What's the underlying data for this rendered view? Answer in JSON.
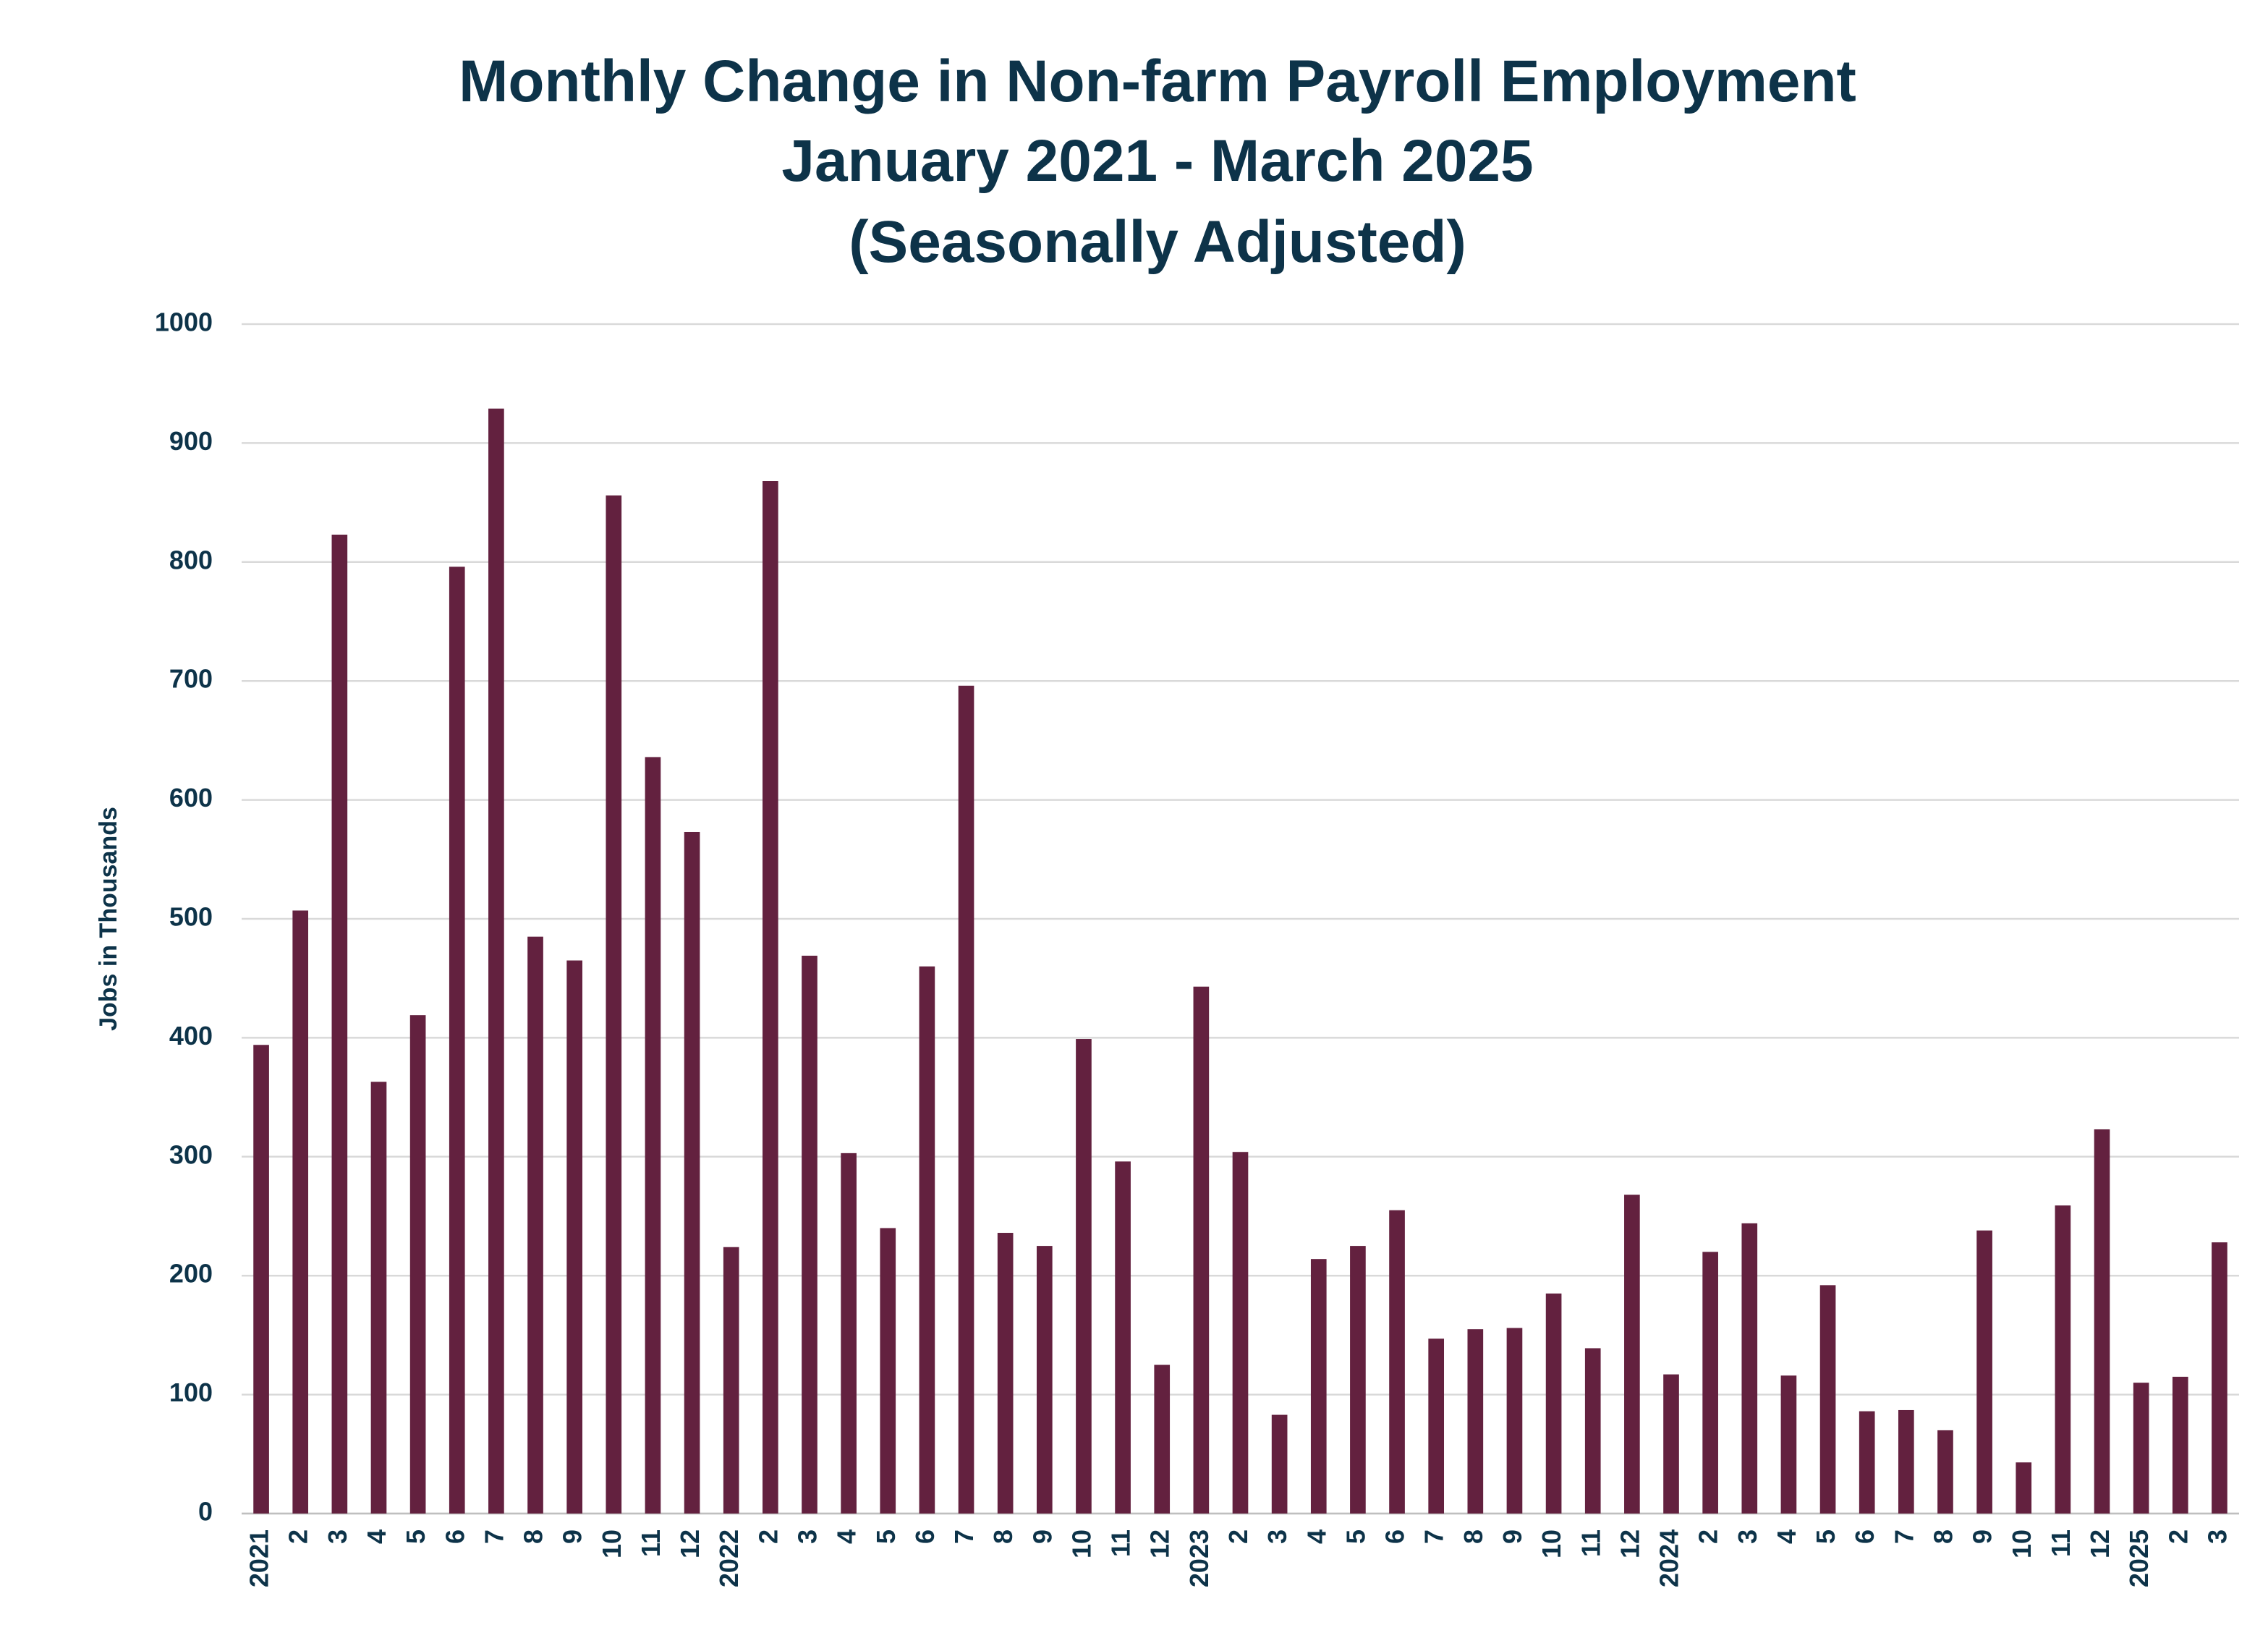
{
  "chart_data": {
    "type": "bar",
    "title": [
      "Monthly Change in Non-farm Payroll Employment",
      "January 2021 - March 2025",
      "(Seasonally Adjusted)"
    ],
    "y_label": "Jobs in Thousands",
    "categories": [
      "2021",
      "2",
      "3",
      "4",
      "5",
      "6",
      "7",
      "8",
      "9",
      "10",
      "11",
      "12",
      "2022",
      "2",
      "3",
      "4",
      "5",
      "6",
      "7",
      "8",
      "9",
      "10",
      "11",
      "12",
      "2023",
      "2",
      "3",
      "4",
      "5",
      "6",
      "7",
      "8",
      "9",
      "10",
      "11",
      "12",
      "2024",
      "2",
      "3",
      "4",
      "5",
      "6",
      "7",
      "8",
      "9",
      "10",
      "11",
      "12",
      "2025",
      "2",
      "3"
    ],
    "values": [
      394,
      507,
      823,
      363,
      419,
      796,
      929,
      485,
      465,
      856,
      636,
      573,
      224,
      868,
      469,
      303,
      240,
      460,
      696,
      236,
      225,
      399,
      296,
      125,
      443,
      304,
      83,
      214,
      225,
      255,
      147,
      155,
      156,
      185,
      139,
      268,
      117,
      220,
      244,
      116,
      192,
      86,
      87,
      70,
      238,
      43,
      259,
      323,
      110,
      115,
      228
    ],
    "color": "#63213f",
    "ylim": [
      0,
      1000
    ],
    "yticks": [
      0,
      100,
      200,
      300,
      400,
      500,
      600,
      700,
      800,
      900,
      1000
    ],
    "grid": true
  }
}
